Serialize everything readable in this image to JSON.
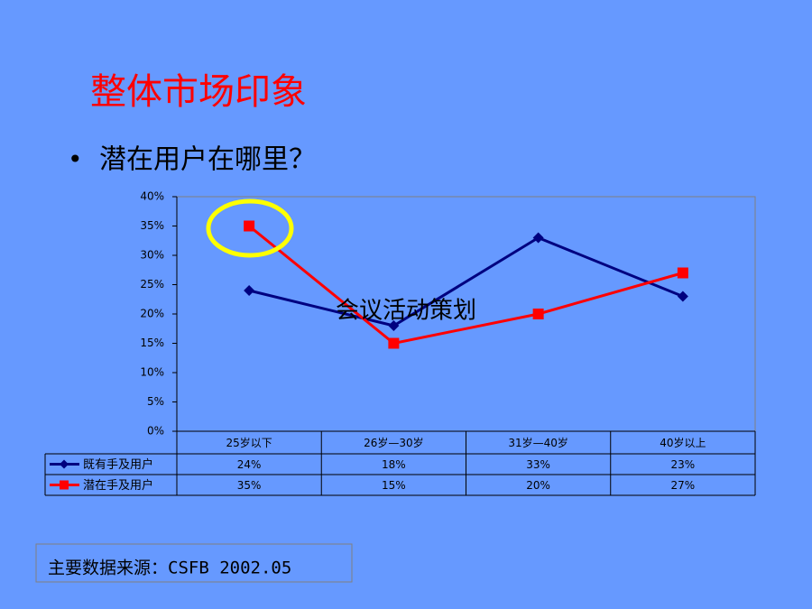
{
  "slide": {
    "title": "整体市场印象",
    "bullet": "潜在用户在哪里？",
    "overlay": "会议活动策划",
    "source": "主要数据来源：CSFB 2002.05"
  },
  "chart_data": {
    "type": "line",
    "categories": [
      "25岁以下",
      "26岁—30岁",
      "31岁—40岁",
      "40岁以上"
    ],
    "series": [
      {
        "name": "既有手及用户",
        "color": "#000080",
        "marker": "diamond",
        "values": [
          24,
          18,
          33,
          23
        ],
        "value_labels": [
          "24%",
          "18%",
          "33%",
          "23%"
        ]
      },
      {
        "name": "潜在手及用户",
        "color": "#ff0000",
        "marker": "square",
        "values": [
          35,
          15,
          20,
          27
        ],
        "value_labels": [
          "35%",
          "15%",
          "20%",
          "27%"
        ]
      }
    ],
    "ylim": [
      0,
      40
    ],
    "yticks": [
      {
        "value": 0,
        "label": "0%"
      },
      {
        "value": 5,
        "label": "5%"
      },
      {
        "value": 10,
        "label": "10%"
      },
      {
        "value": 15,
        "label": "15%"
      },
      {
        "value": 20,
        "label": "20%"
      },
      {
        "value": 25,
        "label": "25%"
      },
      {
        "value": 30,
        "label": "30%"
      },
      {
        "value": 35,
        "label": "35%"
      },
      {
        "value": 40,
        "label": "40%"
      }
    ],
    "grid": false
  }
}
